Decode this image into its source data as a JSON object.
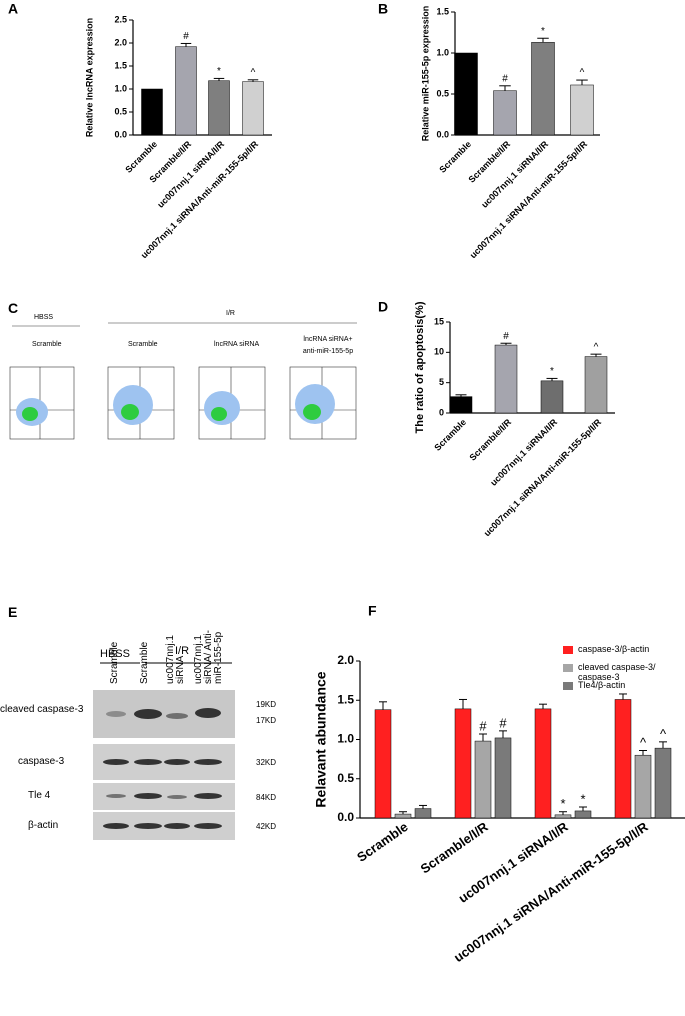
{
  "chart_data": [
    {
      "type": "bar",
      "label": "A",
      "ylabel": "Relative lncRNA expression",
      "categories": [
        "Scramble",
        "Scramble/I/R",
        "uc007nnj.1 siRNA/I/R",
        "uc007nnj.1 siRNA/Anti-miR-155-5p/I/R"
      ],
      "values": [
        1.0,
        1.92,
        1.18,
        1.16
      ],
      "errors": [
        0,
        0.07,
        0.05,
        0.04
      ],
      "annotations": [
        null,
        "#",
        "*",
        "^"
      ],
      "colors": [
        "#000000",
        "#a5a5ae",
        "#7f7f7f",
        "#d0d0d0"
      ],
      "ylim": [
        0,
        2.5
      ],
      "yticks": [
        {
          "value": 0,
          "label": "0.0"
        },
        0.5,
        {
          "value": 1,
          "label": "1.0"
        },
        1.5,
        {
          "value": 2,
          "label": "2.0"
        },
        2.5
      ]
    },
    {
      "type": "bar",
      "label": "B",
      "ylabel": "Relative miR-155-5p expression",
      "categories": [
        "Scramble",
        "Scramble/I/R",
        "uc007nnj.1 siRNA/I/R",
        "uc007nnj.1 siRNA/Anti-miR-155-5p/I/R"
      ],
      "values": [
        1.0,
        0.54,
        1.13,
        0.61
      ],
      "errors": [
        0,
        0.06,
        0.05,
        0.06
      ],
      "annotations": [
        null,
        "#",
        "*",
        "^"
      ],
      "colors": [
        "#000000",
        "#a5a5ae",
        "#7f7f7f",
        "#d0d0d0"
      ],
      "ylim": [
        0,
        1.5
      ],
      "yticks": [
        {
          "value": 0,
          "label": "0.0"
        },
        0.5,
        {
          "value": 1,
          "label": "1.0"
        },
        1.5
      ]
    },
    {
      "type": "bar",
      "label": "D",
      "ylabel": "The ratio of apoptosis(%)",
      "categories": [
        "Scramble",
        "Scramble/I/R",
        "uc007nnj.1 siRNA/I/R",
        "uc007nnj.1 siRNA/Anti-miR-155-5p/I/R"
      ],
      "values": [
        2.7,
        11.2,
        5.3,
        9.3
      ],
      "errors": [
        0.3,
        0.3,
        0.4,
        0.4
      ],
      "annotations": [
        null,
        "#",
        "*",
        "^"
      ],
      "colors": [
        "#000000",
        "#a5a5ae",
        "#6e6e6e",
        "#a0a0a0"
      ],
      "ylim": [
        0,
        15
      ],
      "yticks": [
        0,
        5,
        10,
        15
      ]
    },
    {
      "type": "bar",
      "label": "F",
      "ylabel": "Relavant abundance",
      "legend": "upper right",
      "categories": [
        "Scramble",
        "Scramble/I/R",
        "uc007nnj.1 siRNA/I/R",
        "uc007nnj.1 siRNA/Anti-miR-155-5p/I/R"
      ],
      "series": [
        {
          "name": "caspase-3/β-actin",
          "color": "#ff2020",
          "values": [
            1.38,
            1.39,
            1.39,
            1.51
          ],
          "errors": [
            0.1,
            0.12,
            0.06,
            0.07
          ],
          "annotations": [
            null,
            null,
            null,
            null
          ]
        },
        {
          "name": "cleaved caspase-3/ caspase-3",
          "color": "#a6a6a6",
          "values": [
            0.05,
            0.98,
            0.04,
            0.8
          ],
          "errors": [
            0.03,
            0.09,
            0.04,
            0.06
          ],
          "annotations": [
            null,
            "#",
            "*",
            "^"
          ]
        },
        {
          "name": "Tle4/β-actin",
          "color": "#7a7a7a",
          "values": [
            0.12,
            1.02,
            0.09,
            0.89
          ],
          "errors": [
            0.04,
            0.09,
            0.05,
            0.08
          ],
          "annotations": [
            null,
            "#",
            "*",
            "^"
          ]
        }
      ],
      "ylim": [
        0,
        2.0
      ],
      "yticks": [
        {
          "value": 0,
          "label": "0.0"
        },
        0.5,
        {
          "value": 1,
          "label": "1.0"
        },
        1.5,
        {
          "value": 2,
          "label": "2.0"
        }
      ]
    }
  ],
  "flow_cytometry": {
    "label": "C",
    "groups": [
      "HBSS",
      "I/R"
    ],
    "plot_titles": [
      "Scramble",
      "Scramble",
      "lncRNA siRNA",
      "lncRNA siRNA+ anti-miR-155-5p"
    ]
  },
  "western_blot": {
    "label": "E",
    "groups": [
      "HBSS",
      "I/R"
    ],
    "lanes": [
      "Scramble",
      "Scramble",
      "uc007nnj.1 siRNA",
      "uc007nnj.1 siRNA/ Anti-miR-155-5p"
    ],
    "rows": [
      "cleaved caspase-3",
      "caspase-3",
      "Tle 4",
      "β-actin"
    ],
    "sizes": [
      "19KD",
      "17KD",
      "32KD",
      "84KD",
      "42KD"
    ]
  }
}
